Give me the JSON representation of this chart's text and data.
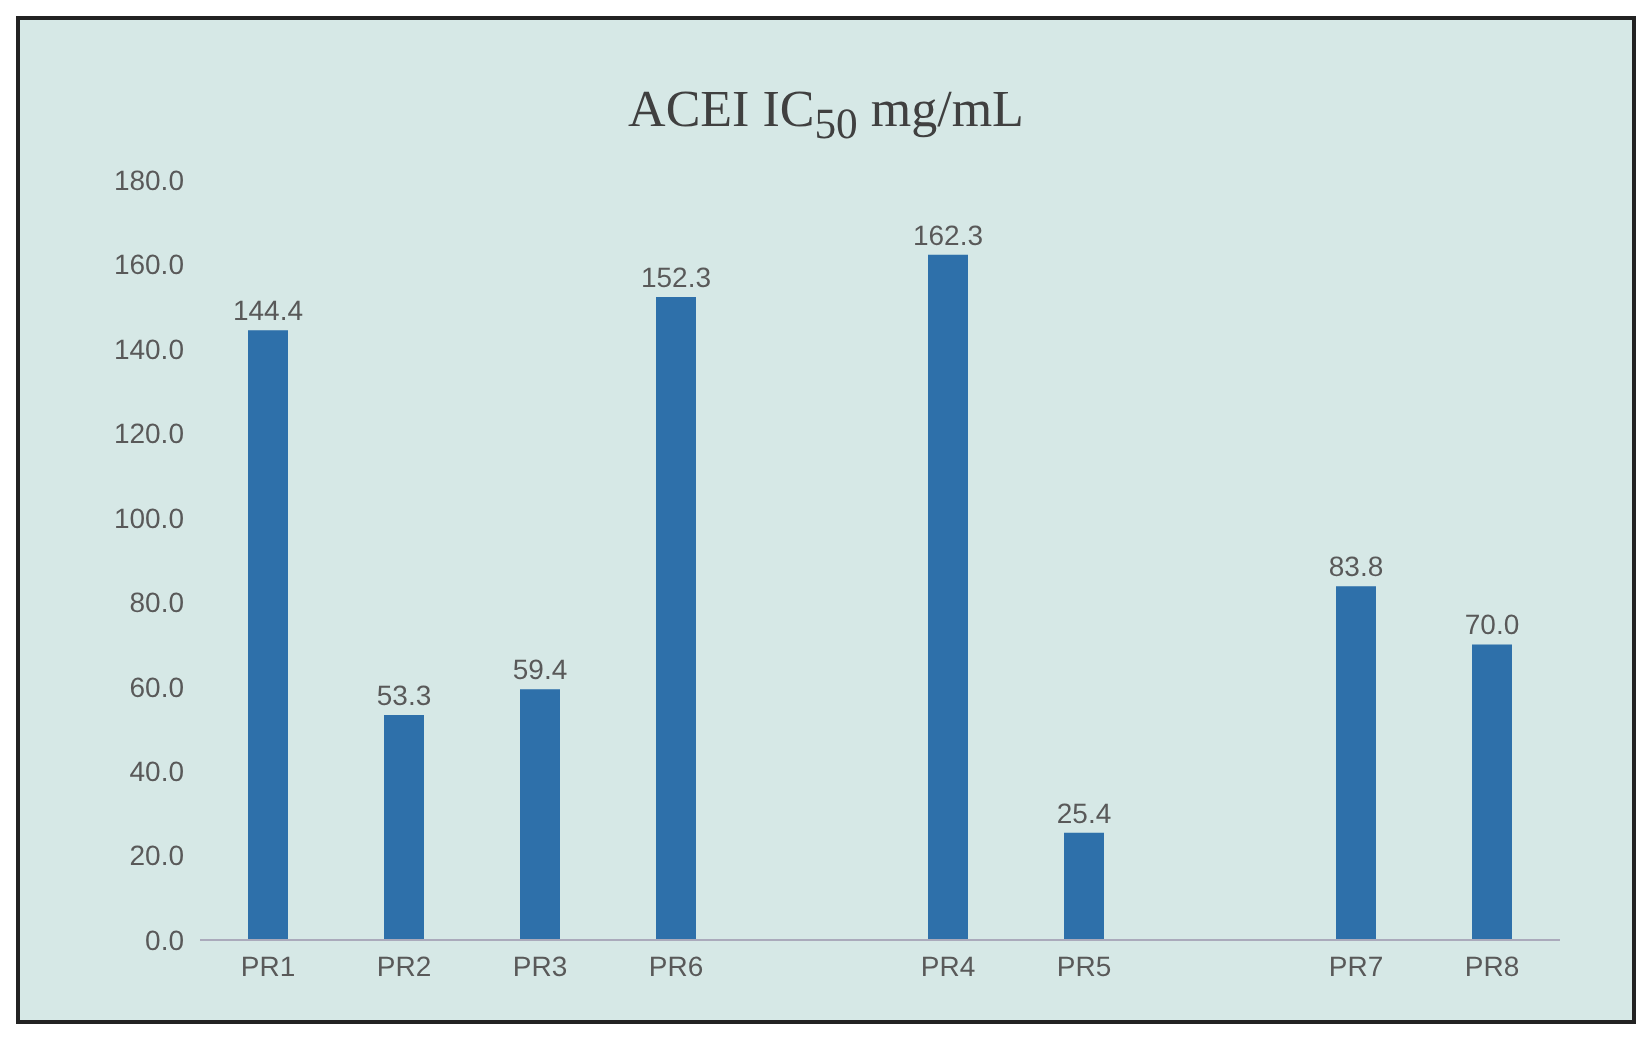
{
  "chart_data": {
    "type": "bar",
    "title": "ACEI IC$_{50}$ mg/mL",
    "categories": [
      "PR1",
      "PR2",
      "PR3",
      "PR6",
      null,
      "PR4",
      "PR5",
      null,
      "PR7",
      "PR8"
    ],
    "values": [
      144.4,
      53.3,
      59.4,
      152.3,
      null,
      162.3,
      25.4,
      null,
      83.8,
      70.0
    ],
    "value_labels": [
      "144.4",
      "53.3",
      "59.4",
      "152.3",
      null,
      "162.3",
      "25.4",
      null,
      "83.8",
      "70.0"
    ],
    "color": "#2e70aa",
    "ylim": [
      0,
      180
    ],
    "yticks": [
      {
        "value": 0,
        "label": "0.0"
      },
      {
        "value": 20,
        "label": "20.0"
      },
      {
        "value": 40,
        "label": "40.0"
      },
      {
        "value": 60,
        "label": "60.0"
      },
      {
        "value": 80,
        "label": "80.0"
      },
      {
        "value": 100,
        "label": "100.0"
      },
      {
        "value": 120,
        "label": "120.0"
      },
      {
        "value": 140,
        "label": "140.0"
      },
      {
        "value": 160,
        "label": "160.0"
      },
      {
        "value": 180,
        "label": "180.0"
      }
    ],
    "grid": false
  }
}
